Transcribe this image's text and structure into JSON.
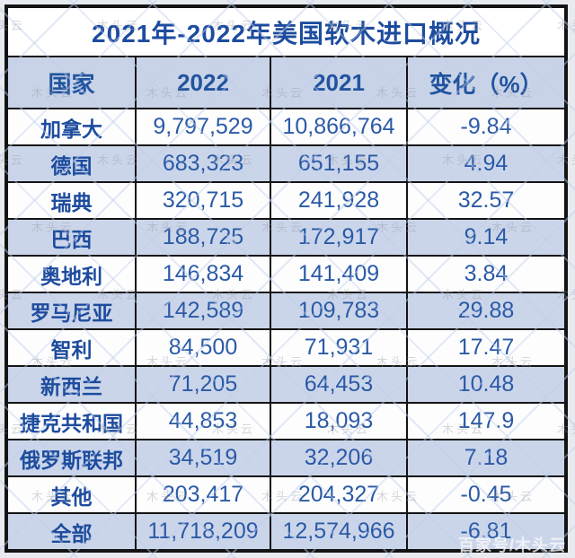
{
  "table": {
    "title": "2021年-2022年美国软木进口概况",
    "columns": {
      "country": "国家",
      "y2022": "2022",
      "y2021": "2021",
      "change": "变化（%）"
    },
    "rows": [
      {
        "country": "加拿大",
        "y2022": "9,797,529",
        "y2021": "10,866,764",
        "change": "-9.84"
      },
      {
        "country": "德国",
        "y2022": "683,323",
        "y2021": "651,155",
        "change": "4.94"
      },
      {
        "country": "瑞典",
        "y2022": "320,715",
        "y2021": "241,928",
        "change": "32.57"
      },
      {
        "country": "巴西",
        "y2022": "188,725",
        "y2021": "172,917",
        "change": "9.14"
      },
      {
        "country": "奥地利",
        "y2022": "146,834",
        "y2021": "141,409",
        "change": "3.84"
      },
      {
        "country": "罗马尼亚",
        "y2022": "142,589",
        "y2021": "109,783",
        "change": "29.88"
      },
      {
        "country": "智利",
        "y2022": "84,500",
        "y2021": "71,931",
        "change": "17.47"
      },
      {
        "country": "新西兰",
        "y2022": "71,205",
        "y2021": "64,453",
        "change": "10.48"
      },
      {
        "country": "捷克共和国",
        "y2022": "44,853",
        "y2021": "18,093",
        "change": "147.9"
      },
      {
        "country": "俄罗斯联邦",
        "y2022": "34,519",
        "y2021": "32,206",
        "change": "7.18"
      },
      {
        "country": "其他",
        "y2022": "203,417",
        "y2021": "204,327",
        "change": "-0.45"
      },
      {
        "country": "全部",
        "y2022": "11,718,209",
        "y2021": "12,574,966",
        "change": "-6.81"
      }
    ]
  },
  "watermark": {
    "tile": "木头云",
    "corner": "百家号/木头云"
  },
  "colors": {
    "title_text": "#1d4c9e",
    "number_text": "#2a5aa6",
    "header_bg": "#c9d3e8",
    "alt_row_bg": "#cbd5ea",
    "border": "#141414",
    "page_bg": "#e7eaef"
  },
  "chart_data": {
    "type": "table",
    "title": "2021年-2022年美国软木进口概况",
    "columns": [
      "国家",
      "2022",
      "2021",
      "变化（%）"
    ],
    "rows": [
      [
        "加拿大",
        9797529,
        10866764,
        -9.84
      ],
      [
        "德国",
        683323,
        651155,
        4.94
      ],
      [
        "瑞典",
        320715,
        241928,
        32.57
      ],
      [
        "巴西",
        188725,
        172917,
        9.14
      ],
      [
        "奥地利",
        146834,
        141409,
        3.84
      ],
      [
        "罗马尼亚",
        142589,
        109783,
        29.88
      ],
      [
        "智利",
        84500,
        71931,
        17.47
      ],
      [
        "新西兰",
        71205,
        64453,
        10.48
      ],
      [
        "捷克共和国",
        44853,
        18093,
        147.9
      ],
      [
        "俄罗斯联邦",
        34519,
        32206,
        7.18
      ],
      [
        "其他",
        203417,
        204327,
        -0.45
      ],
      [
        "全部",
        11718209,
        12574966,
        -6.81
      ]
    ]
  }
}
